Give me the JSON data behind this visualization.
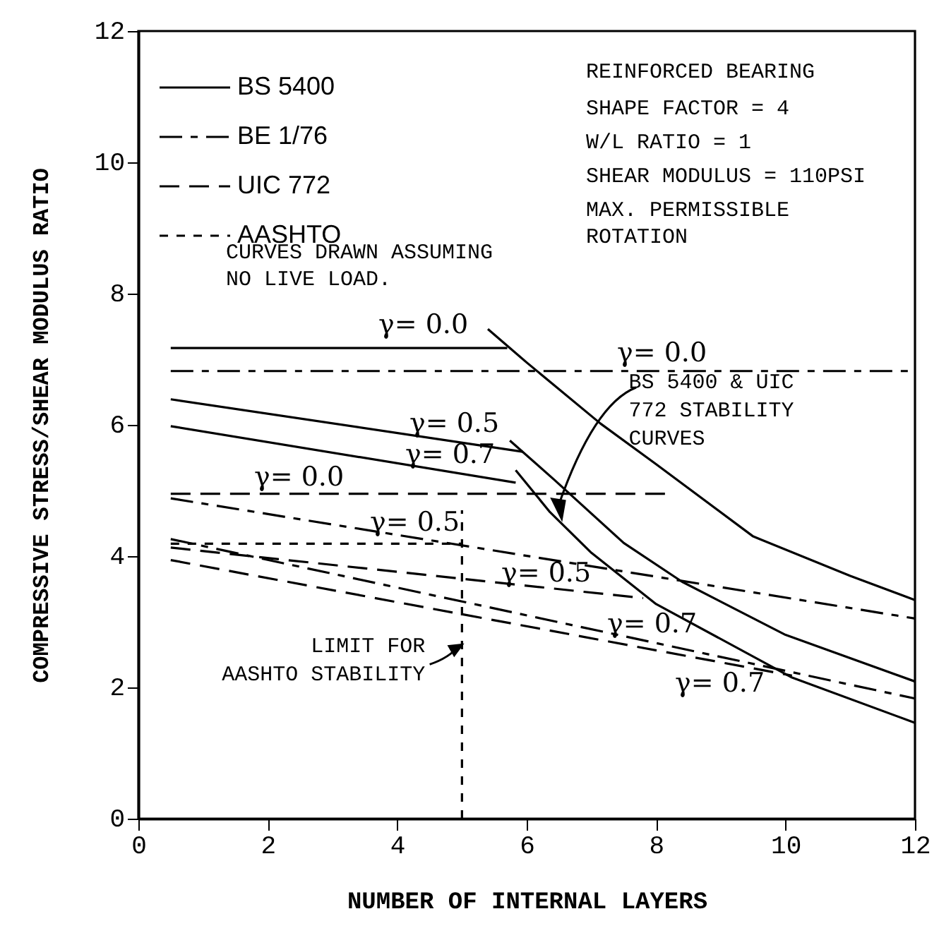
{
  "chart_data": {
    "type": "line",
    "xlabel": "NUMBER OF INTERNAL LAYERS",
    "ylabel": "COMPRESSIVE STRESS/SHEAR MODULUS RATIO",
    "xlim": [
      0,
      12
    ],
    "xticks": [
      0,
      2,
      4,
      6,
      8,
      10,
      12
    ],
    "ylim": [
      0,
      12
    ],
    "yticks": [
      0,
      2,
      4,
      6,
      8,
      10,
      12
    ],
    "grid": false,
    "legend": "top left",
    "marker": "none",
    "series": [
      {
        "name": "BS 5400",
        "color": "#000000",
        "line_style": "solid",
        "x": [
          0.5,
          5.7
        ],
        "values": [
          7.17,
          7.17
        ]
      },
      {
        "color": "#000000",
        "line_style": "solid",
        "x": [
          0.5,
          5.94
        ],
        "values": [
          6.39,
          5.59
        ]
      },
      {
        "color": "#000000",
        "line_style": "solid",
        "x": [
          0.5,
          5.83
        ],
        "values": [
          5.98,
          5.12
        ]
      },
      {
        "color": "#000000",
        "line_style": "solid",
        "x": [
          5.4,
          6.0,
          7.14,
          8.0,
          9.5,
          11.0,
          12.0
        ],
        "values": [
          7.46,
          6.95,
          6.02,
          5.4,
          4.3,
          3.7,
          3.33
        ]
      },
      {
        "color": "#000000",
        "line_style": "solid",
        "x": [
          5.74,
          6.43,
          7.5,
          8.4,
          10.0,
          12.0
        ],
        "values": [
          5.76,
          5.16,
          4.2,
          3.61,
          2.8,
          2.09
        ]
      },
      {
        "color": "#000000",
        "line_style": "solid",
        "x": [
          5.83,
          6.36,
          7.0,
          8.0,
          10.1,
          12.0
        ],
        "values": [
          5.31,
          4.67,
          4.05,
          3.27,
          2.15,
          1.46
        ]
      },
      {
        "name": "BE 1/76",
        "color": "#000000",
        "line_style": "dashdot",
        "x": [
          0.5,
          12
        ],
        "values": [
          6.82,
          6.82
        ]
      },
      {
        "color": "#000000",
        "line_style": "dashdot",
        "x": [
          0.5,
          12
        ],
        "values": [
          4.88,
          3.05
        ]
      },
      {
        "color": "#000000",
        "line_style": "dashdot",
        "x": [
          0.5,
          12
        ],
        "values": [
          4.26,
          1.83
        ]
      },
      {
        "name": "UIC 772",
        "color": "#000000",
        "line_style": "dashed",
        "x": [
          0.5,
          8.2
        ],
        "values": [
          4.95,
          4.95
        ]
      },
      {
        "color": "#000000",
        "line_style": "dashed",
        "x": [
          0.5,
          7.8
        ],
        "values": [
          4.13,
          3.36
        ]
      },
      {
        "color": "#000000",
        "line_style": "dashed",
        "x": [
          0.5,
          10.1
        ],
        "values": [
          3.94,
          2.18
        ]
      },
      {
        "name": "AASHTO",
        "color": "#000000",
        "line_style": "dotted",
        "x": [
          0.5,
          5
        ],
        "values": [
          4.19,
          4.19
        ]
      },
      {
        "color": "#000000",
        "line_style": "dotted",
        "x": [
          5,
          5
        ],
        "values": [
          0,
          4.7
        ]
      }
    ],
    "annotations": [
      "REINFORCED BEARING",
      "SHAPE FACTOR = 4",
      "W/L RATIO = 1",
      "SHEAR MODULUS = 110PSI",
      "MAX. PERMISSIBLE\nROTATION",
      "CURVES DRAWN ASSUMING\nNO LIVE LOAD.",
      {
        "text": "BS 5400 & UIC\n772 STABILITY\nCURVES",
        "x": 7.14,
        "y": 6.02
      },
      {
        "text": "LIMIT FOR\nAASHTO STABILITY",
        "x": 5,
        "y": 2.65
      },
      "γ= 0.0",
      "γ= 0.0",
      "γ= 0.5",
      "γ= 0.7",
      "γ= 0.0",
      "γ= 0.5",
      "γ= 0.5",
      "γ= 0.7",
      "γ= 0.7"
    ]
  }
}
